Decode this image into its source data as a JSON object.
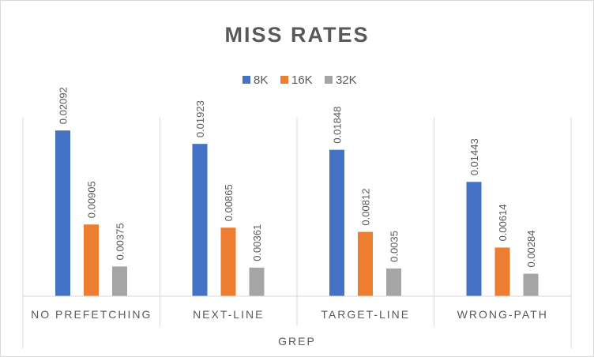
{
  "chart_data": {
    "type": "bar",
    "title": "MISS RATES",
    "xlabel": "GREP",
    "ylabel": "",
    "categories": [
      "NO PREFETCHING",
      "NEXT-LINE",
      "TARGET-LINE",
      "WRONG-PATH"
    ],
    "series": [
      {
        "name": "8K",
        "color": "#4472c4",
        "values": [
          0.02092,
          0.01923,
          0.01848,
          0.01443
        ],
        "labels": [
          "0.02092",
          "0.01923",
          "0.01848",
          "0.01443"
        ]
      },
      {
        "name": "16K",
        "color": "#ed7d31",
        "values": [
          0.00905,
          0.00865,
          0.00812,
          0.00614
        ],
        "labels": [
          "0.00905",
          "0.00865",
          "0.00812",
          "0.00614"
        ]
      },
      {
        "name": "32K",
        "color": "#a5a5a5",
        "values": [
          0.00375,
          0.00361,
          0.0035,
          0.00284
        ],
        "labels": [
          "0.00375",
          "0.00361",
          "0.0035",
          "0.00284"
        ]
      }
    ],
    "ylim": [
      0,
      0.025
    ],
    "legend": "top",
    "grid": false,
    "data_labels": true
  }
}
